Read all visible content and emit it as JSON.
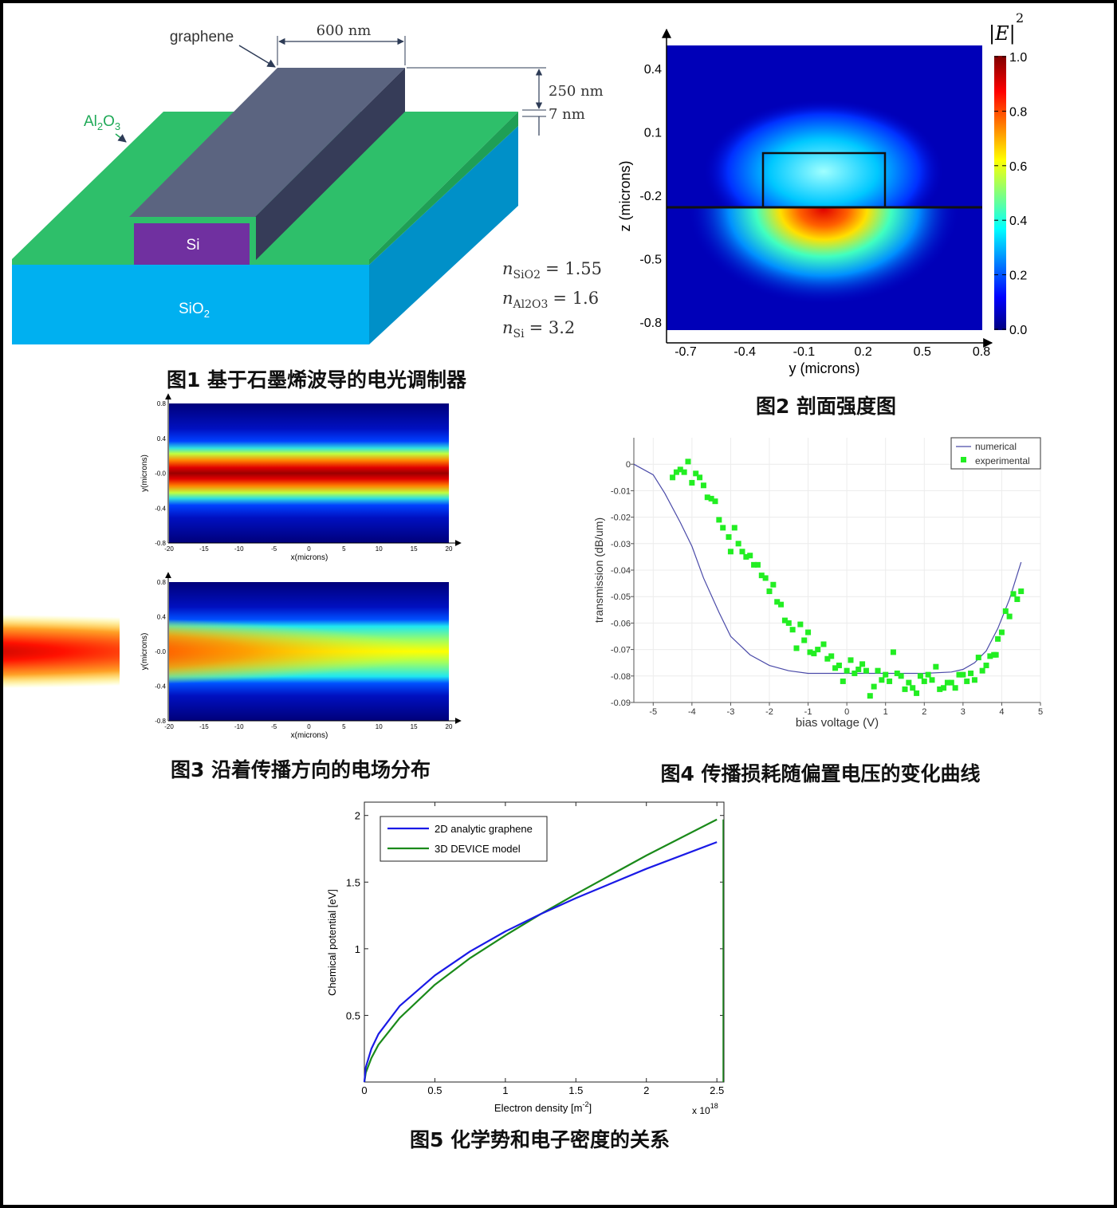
{
  "figure1": {
    "caption": "图1 基于石墨烯波导的电光调制器",
    "labels": {
      "graphene": "graphene",
      "width": "600 nm",
      "height": "250 nm",
      "thickness": "7 nm",
      "al2o3": "Al2O3",
      "si": "Si",
      "sio2": "SiO2"
    },
    "indices": [
      {
        "symbol": "n",
        "sub": "SiO2",
        "value": "= 1.55"
      },
      {
        "symbol": "n",
        "sub": "Al2O3",
        "value": "= 1.6"
      },
      {
        "symbol": "n",
        "sub": "Si",
        "value": "= 3.2"
      }
    ],
    "colors": {
      "sio2": "#00b0f0",
      "sio2_side": "#0090c8",
      "al2o3": "#2ebf6a",
      "si": "#7030a0",
      "graphene_top": "#5b6480",
      "graphene_side": "#363c58"
    }
  },
  "figure2": {
    "caption": "图2 剖面强度图",
    "colorbar_title": "|E|",
    "colorbar_exponent": "2"
  },
  "figure3": {
    "caption": "图3 沿着传播方向的电场分布"
  },
  "figure4": {
    "caption": "图4 传播损耗随偏置电压的变化曲线"
  },
  "figure5": {
    "caption": "图5 化学势和电子密度的关系",
    "x_multiplier": "x 10",
    "x_multiplier_exp": "18"
  },
  "chart_data": [
    {
      "id": "fig2",
      "type": "heatmap",
      "title": "",
      "xlabel": "y (microns)",
      "ylabel": "z (microns)",
      "xlim": [
        -0.8,
        0.82
      ],
      "ylim": [
        -0.9,
        0.5
      ],
      "xticks": [
        "-0.7",
        "-0.4",
        "-0.1",
        "0.2",
        "0.5",
        "0.8"
      ],
      "xtick_values": [
        -0.7,
        -0.4,
        -0.1,
        0.2,
        0.5,
        0.8
      ],
      "yticks": [
        "0.4",
        "0.1",
        "-0.2",
        "-0.5",
        "-0.8"
      ],
      "ytick_values": [
        0.4,
        0.1,
        -0.2,
        -0.5,
        -0.8
      ],
      "colorbar": {
        "ticks": [
          "1.0",
          "0.8",
          "0.6",
          "0.4",
          "0.2",
          "0.0"
        ],
        "tick_values": [
          1.0,
          0.8,
          0.6,
          0.4,
          0.2,
          0.0
        ],
        "range": [
          0,
          1
        ]
      },
      "colormap": "jet"
    },
    {
      "id": "fig3-top",
      "type": "heatmap",
      "xlabel": "x(microns)",
      "ylabel": "y(microns)",
      "xlim": [
        -20,
        20
      ],
      "ylim": [
        -0.8,
        0.8
      ],
      "xticks": [
        "-20",
        "-15",
        "-10",
        "-5",
        "0",
        "5",
        "10",
        "15",
        "20"
      ],
      "xtick_values": [
        -20,
        -15,
        -10,
        -5,
        0,
        5,
        10,
        15,
        20
      ],
      "yticks": [
        "0.8",
        "0.4",
        "-0.0",
        "-0.4",
        "-0.8"
      ],
      "ytick_values": [
        0.8,
        0.4,
        0,
        -0.4,
        -0.8
      ],
      "colormap": "jet"
    },
    {
      "id": "fig3-bottom",
      "type": "heatmap",
      "xlabel": "x(microns)",
      "ylabel": "y(microns)",
      "xlim": [
        -20,
        20
      ],
      "ylim": [
        -0.8,
        0.8
      ],
      "xticks": [
        "-20",
        "-15",
        "-10",
        "-5",
        "0",
        "5",
        "10",
        "15",
        "20"
      ],
      "xtick_values": [
        -20,
        -15,
        -10,
        -5,
        0,
        5,
        10,
        15,
        20
      ],
      "yticks": [
        "0.8",
        "0.4",
        "-0.0",
        "-0.4",
        "-0.8"
      ],
      "ytick_values": [
        0.8,
        0.4,
        0,
        -0.4,
        -0.8
      ],
      "colormap": "jet"
    },
    {
      "id": "fig4",
      "type": "line",
      "xlabel": "bias voltage (V)",
      "ylabel": "transmission (dB/um)",
      "xlim": [
        -5.5,
        5
      ],
      "ylim": [
        -0.09,
        0.01
      ],
      "grid": true,
      "legend_position": "top-right",
      "xticks": [
        "-5",
        "-4",
        "-3",
        "-2",
        "-1",
        "0",
        "1",
        "2",
        "3",
        "4",
        "5"
      ],
      "xtick_values": [
        -5,
        -4,
        -3,
        -2,
        -1,
        0,
        1,
        2,
        3,
        4,
        5
      ],
      "yticks": [
        "0",
        "-0.01",
        "-0.02",
        "-0.03",
        "-0.04",
        "-0.05",
        "-0.06",
        "-0.07",
        "-0.08",
        "-0.09"
      ],
      "ytick_values": [
        0,
        -0.01,
        -0.02,
        -0.03,
        -0.04,
        -0.05,
        -0.06,
        -0.07,
        -0.08,
        -0.09
      ],
      "series": [
        {
          "name": "numerical",
          "kind": "line",
          "color": "#4a4aa8",
          "x": [
            -5.5,
            -5,
            -4.7,
            -4.3,
            -4,
            -3.7,
            -3.3,
            -3,
            -2.5,
            -2,
            -1.5,
            -1,
            0,
            1,
            2,
            2.7,
            3,
            3.3,
            3.6,
            3.9,
            4.2,
            4.5
          ],
          "y": [
            0,
            -0.004,
            -0.011,
            -0.022,
            -0.031,
            -0.043,
            -0.056,
            -0.065,
            -0.072,
            -0.076,
            -0.078,
            -0.079,
            -0.079,
            -0.079,
            -0.079,
            -0.0785,
            -0.0775,
            -0.075,
            -0.0705,
            -0.062,
            -0.051,
            -0.037
          ]
        },
        {
          "name": "experimental",
          "kind": "scatter",
          "color": "#22ee22",
          "x": [
            -4.5,
            -4.4,
            -4.3,
            -4.2,
            -4.1,
            -4.0,
            -3.9,
            -3.8,
            -3.7,
            -3.6,
            -3.5,
            -3.4,
            -3.3,
            -3.2,
            -3.05,
            -3.0,
            -2.9,
            -2.8,
            -2.7,
            -2.6,
            -2.5,
            -2.4,
            -2.3,
            -2.2,
            -2.1,
            -2.0,
            -1.9,
            -1.8,
            -1.7,
            -1.6,
            -1.5,
            -1.4,
            -1.3,
            -1.2,
            -1.1,
            -1.0,
            -0.95,
            -0.85,
            -0.75,
            -0.6,
            -0.5,
            -0.4,
            -0.3,
            -0.2,
            -0.1,
            0.0,
            0.1,
            0.2,
            0.3,
            0.4,
            0.5,
            0.6,
            0.7,
            0.8,
            0.9,
            1.0,
            1.1,
            1.2,
            1.3,
            1.4,
            1.5,
            1.6,
            1.7,
            1.8,
            1.9,
            2.0,
            2.1,
            2.2,
            2.3,
            2.4,
            2.5,
            2.6,
            2.7,
            2.8,
            2.9,
            3.0,
            3.1,
            3.2,
            3.3,
            3.4,
            3.5,
            3.6,
            3.7,
            3.8,
            3.85,
            3.9,
            4.0,
            4.1,
            4.2,
            4.3,
            4.4,
            4.5
          ],
          "y": [
            -0.005,
            -0.003,
            -0.002,
            -0.003,
            0.001,
            -0.007,
            -0.0035,
            -0.005,
            -0.008,
            -0.0125,
            -0.013,
            -0.014,
            -0.021,
            -0.024,
            -0.0275,
            -0.033,
            -0.024,
            -0.03,
            -0.033,
            -0.035,
            -0.0345,
            -0.038,
            -0.038,
            -0.042,
            -0.043,
            -0.048,
            -0.0455,
            -0.052,
            -0.053,
            -0.059,
            -0.06,
            -0.0625,
            -0.0695,
            -0.0605,
            -0.0665,
            -0.0635,
            -0.071,
            -0.0715,
            -0.07,
            -0.068,
            -0.0735,
            -0.0725,
            -0.077,
            -0.076,
            -0.082,
            -0.078,
            -0.074,
            -0.079,
            -0.0775,
            -0.0755,
            -0.078,
            -0.0875,
            -0.084,
            -0.078,
            -0.0815,
            -0.0795,
            -0.082,
            -0.071,
            -0.079,
            -0.08,
            -0.085,
            -0.0825,
            -0.0845,
            -0.0865,
            -0.08,
            -0.082,
            -0.0795,
            -0.0815,
            -0.0765,
            -0.085,
            -0.0845,
            -0.0825,
            -0.0825,
            -0.0845,
            -0.0795,
            -0.0795,
            -0.082,
            -0.079,
            -0.0815,
            -0.073,
            -0.078,
            -0.076,
            -0.0725,
            -0.072,
            -0.072,
            -0.066,
            -0.0635,
            -0.0555,
            -0.0575,
            -0.049,
            -0.051,
            -0.048
          ]
        }
      ]
    },
    {
      "id": "fig5",
      "type": "line",
      "xlabel": "Electron density [m-2]",
      "xlabel_main": "Electron density [m",
      "xlabel_sup": "-2",
      "xlabel_end": "]",
      "ylabel": "Chemical potential [eV]",
      "xlim": [
        0,
        2.55
      ],
      "ylim": [
        0,
        2.1
      ],
      "grid": false,
      "legend_position": "top-left",
      "xticks": [
        "0",
        "0.5",
        "1",
        "1.5",
        "2",
        "2.5"
      ],
      "xtick_values": [
        0,
        0.5,
        1,
        1.5,
        2,
        2.5
      ],
      "yticks": [
        "0.5",
        "1",
        "1.5",
        "2"
      ],
      "ytick_values": [
        0.5,
        1,
        1.5,
        2
      ],
      "series": [
        {
          "name": "2D analytic graphene",
          "color": "#1a1ae6",
          "x": [
            0,
            0.01,
            0.05,
            0.1,
            0.25,
            0.5,
            0.75,
            1,
            1.25,
            1.5,
            2,
            2.5
          ],
          "y": [
            0,
            0.11,
            0.25,
            0.36,
            0.57,
            0.8,
            0.98,
            1.13,
            1.26,
            1.38,
            1.6,
            1.8
          ]
        },
        {
          "name": "3D DEVICE model",
          "color": "#1a8a1a",
          "x": [
            0,
            0.01,
            0.05,
            0.1,
            0.25,
            0.5,
            0.75,
            1,
            1.25,
            1.5,
            2,
            2.5
          ],
          "y": [
            0,
            0.07,
            0.18,
            0.28,
            0.48,
            0.73,
            0.93,
            1.1,
            1.26,
            1.41,
            1.7,
            1.97
          ]
        }
      ]
    }
  ]
}
